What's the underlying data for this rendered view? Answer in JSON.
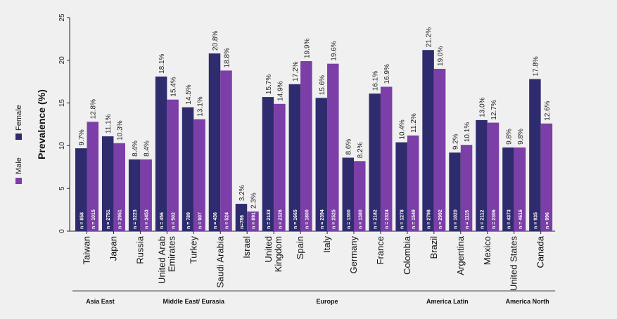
{
  "chart_data": {
    "type": "bar",
    "ylabel": "Prevalence (%)",
    "ylim": [
      0,
      25
    ],
    "yticks": [
      0,
      5,
      10,
      15,
      20,
      25
    ],
    "legend": {
      "position": "left",
      "entries": [
        {
          "name": "Female",
          "color": "#2e2c6e"
        },
        {
          "name": "Male",
          "color": "#7b3fa7"
        }
      ]
    },
    "categories": [
      {
        "label": [
          "Taiwan"
        ],
        "female": 9.7,
        "male": 12.8,
        "female_label": "9.7%",
        "male_label": "12.8%",
        "female_n": "n = 858",
        "male_n": "n = 1015"
      },
      {
        "label": [
          "Japan"
        ],
        "female": 11.1,
        "male": 10.3,
        "female_label": "11.1%",
        "male_label": "10.3%",
        "female_n": "n = 2751",
        "male_n": "n = 2951"
      },
      {
        "label": [
          "Russia"
        ],
        "female": 8.4,
        "male": 8.4,
        "female_label": "8.4%",
        "male_label": "8.4%",
        "female_n": "n = 3223",
        "male_n": "n = 3453"
      },
      {
        "label": [
          "United Arab",
          "Emirates"
        ],
        "female": 18.1,
        "male": 15.4,
        "female_label": "18.1%",
        "male_label": "15.4%",
        "female_n": "n = 456",
        "male_n": "n = 502"
      },
      {
        "label": [
          "Turkey"
        ],
        "female": 14.5,
        "male": 13.1,
        "female_label": "14.5%",
        "male_label": "13.1%",
        "female_n": "n = 789",
        "male_n": "n = 907"
      },
      {
        "label": [
          "Saudi Arabia"
        ],
        "female": 20.8,
        "male": 18.8,
        "female_label": "20.8%",
        "male_label": "18.8%",
        "female_n": "n = 436",
        "male_n": "n = 524"
      },
      {
        "label": [
          "Israel"
        ],
        "female": 3.2,
        "male": 2.3,
        "female_label": "3.2%",
        "male_label": "2.3%",
        "female_n": "n=786",
        "male_n": "n = 891"
      },
      {
        "label": [
          "United",
          "Kingdom"
        ],
        "female": 15.7,
        "male": 14.9,
        "female_label": "15.7%",
        "male_label": "14.9%",
        "female_n": "n = 2133",
        "male_n": "n = 2326"
      },
      {
        "label": [
          "Spain"
        ],
        "female": 17.2,
        "male": 19.9,
        "female_label": "17.2%",
        "male_label": "19.9%",
        "female_n": "n = 1665",
        "male_n": "n = 1800"
      },
      {
        "label": [
          "Italy"
        ],
        "female": 15.6,
        "male": 19.6,
        "female_label": "15.6%",
        "male_label": "19.6%",
        "female_n": "n = 2394",
        "male_n": "n = 2525"
      },
      {
        "label": [
          "Germany"
        ],
        "female": 8.6,
        "male": 8.2,
        "female_label": "8.6%",
        "male_label": "8.2%",
        "female_n": "n = 1300",
        "male_n": "n = 1380"
      },
      {
        "label": [
          "France"
        ],
        "female": 16.1,
        "male": 16.9,
        "female_label": "16.1%",
        "male_label": "16.9%",
        "female_n": "n = 2182",
        "male_n": "n = 2324"
      },
      {
        "label": [
          "Colombia"
        ],
        "female": 10.4,
        "male": 11.2,
        "female_label": "10.4%",
        "male_label": "11.2%",
        "female_n": "n = 1278",
        "male_n": "n = 1549"
      },
      {
        "label": [
          "Brazil"
        ],
        "female": 21.2,
        "male": 19.0,
        "female_label": "21.2%",
        "male_label": "19.0%",
        "female_n": "n = 2798",
        "male_n": "n = 2992"
      },
      {
        "label": [
          "Argentina"
        ],
        "female": 9.2,
        "male": 10.1,
        "female_label": "9.2%",
        "male_label": "10.1%",
        "female_n": "n = 1020",
        "male_n": "n = 1115"
      },
      {
        "label": [
          "Mexico"
        ],
        "female": 13.0,
        "male": 12.7,
        "female_label": "13.0%",
        "male_label": "12.7%",
        "female_n": "n = 2112",
        "male_n": "n = 2306"
      },
      {
        "label": [
          "United States"
        ],
        "female": 9.8,
        "male": 9.8,
        "female_label": "9.8%",
        "male_label": "9.8%",
        "female_n": "n = 4373",
        "male_n": "n = 4616"
      },
      {
        "label": [
          "Canada"
        ],
        "female": 17.8,
        "male": 12.6,
        "female_label": "17.8%",
        "male_label": "12.6%",
        "female_n": "n = 935",
        "male_n": "n = 996"
      }
    ],
    "regions": [
      {
        "name": "Asia East",
        "first": 0,
        "last": 1
      },
      {
        "name": "Middle East/ Eurasia",
        "first": 2,
        "last": 6
      },
      {
        "name": "Europe",
        "first": 7,
        "last": 11
      },
      {
        "name": "America Latin",
        "first": 12,
        "last": 15
      },
      {
        "name": "America North",
        "first": 16,
        "last": 17
      }
    ]
  }
}
